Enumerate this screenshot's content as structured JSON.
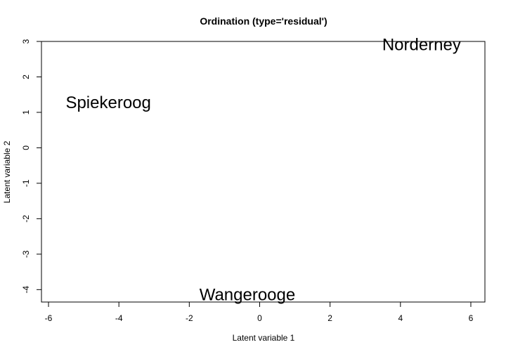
{
  "chart_data": {
    "type": "scatter",
    "title": "Ordination (type='residual')",
    "xlabel": "Latent variable 1",
    "ylabel": "Latent variable 2",
    "xlim": [
      -6.2,
      6.4
    ],
    "ylim": [
      -4.35,
      3.0
    ],
    "xticks": [
      -6,
      -4,
      -2,
      0,
      2,
      4,
      6
    ],
    "yticks": [
      -4,
      -3,
      -2,
      -1,
      0,
      1,
      2,
      3
    ],
    "grid": false,
    "points": [
      {
        "label": "Norderney",
        "x": 4.6,
        "y": 2.9
      },
      {
        "label": "Spiekeroog",
        "x": -4.3,
        "y": 1.27
      },
      {
        "label": "Wangerooge",
        "x": -0.35,
        "y": -4.15
      }
    ]
  }
}
